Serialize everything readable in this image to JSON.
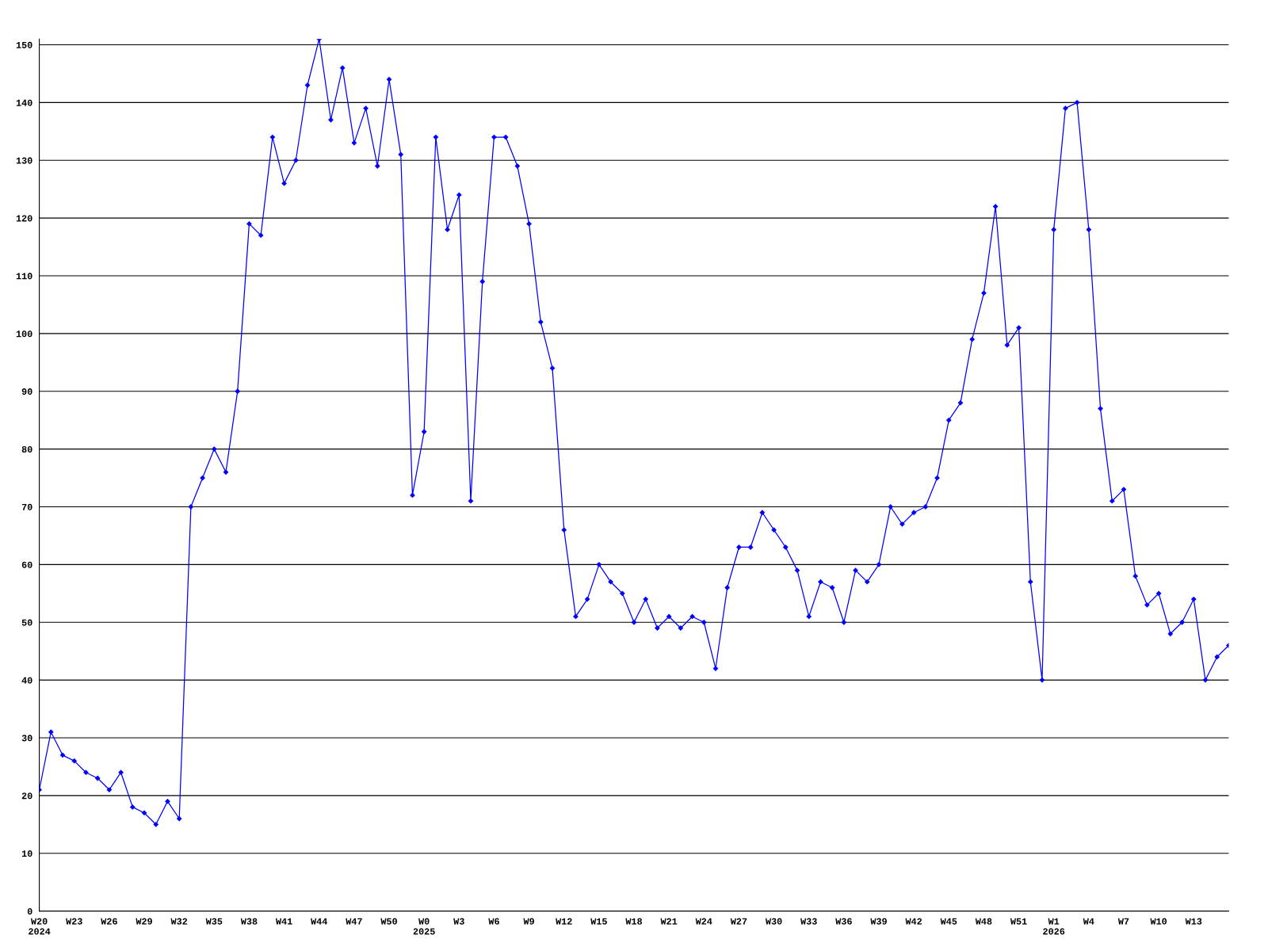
{
  "chart_data": {
    "type": "line",
    "categories": [
      "W20\n2024",
      null,
      null,
      "W23",
      null,
      null,
      "W26",
      null,
      null,
      "W29",
      null,
      null,
      "W32",
      null,
      null,
      "W35",
      null,
      null,
      "W38",
      null,
      null,
      "W41",
      null,
      null,
      "W44",
      null,
      null,
      "W47",
      null,
      null,
      "W50",
      null,
      null,
      "W0\n2025",
      null,
      null,
      "W3",
      null,
      null,
      "W6",
      null,
      null,
      "W9",
      null,
      null,
      "W12",
      null,
      null,
      "W15",
      null,
      null,
      "W18",
      null,
      null,
      "W21",
      null,
      null,
      "W24",
      null,
      null,
      "W27",
      null,
      null,
      "W30",
      null,
      null,
      "W33",
      null,
      null,
      "W36",
      null,
      null,
      "W39",
      null,
      null,
      "W42",
      null,
      null,
      "W45",
      null,
      null,
      "W48",
      null,
      null,
      "W51",
      null,
      null,
      "W1\n2026",
      null,
      null,
      "W4",
      null,
      null,
      "W7",
      null,
      null,
      "W10",
      null,
      null,
      "W13",
      null,
      null,
      null
    ],
    "series": [
      {
        "color": "#0000ff",
        "values": [
          21,
          31,
          27,
          26,
          24,
          23,
          21,
          24,
          18,
          17,
          15,
          19,
          16,
          70,
          75,
          80,
          76,
          90,
          119,
          117,
          134,
          126,
          130,
          143,
          151,
          137,
          146,
          133,
          139,
          129,
          144,
          131,
          72,
          83,
          134,
          118,
          124,
          71,
          109,
          134,
          134,
          129,
          119,
          102,
          94,
          66,
          51,
          54,
          60,
          57,
          55,
          50,
          54,
          49,
          51,
          49,
          51,
          50,
          42,
          56,
          63,
          63,
          69,
          66,
          63,
          59,
          51,
          57,
          56,
          50,
          59,
          57,
          60,
          70,
          67,
          69,
          70,
          75,
          85,
          88,
          99,
          107,
          122,
          98,
          101,
          57,
          40,
          118,
          139,
          140,
          118,
          87,
          71,
          73,
          58,
          53,
          55,
          48,
          50,
          54,
          40,
          44,
          46
        ]
      }
    ],
    "ylim": [
      0,
      151
    ],
    "yticks": [
      0,
      10,
      20,
      30,
      40,
      50,
      60,
      70,
      80,
      90,
      100,
      110,
      120,
      130,
      140,
      150
    ],
    "grid": "y",
    "marker": "diamond",
    "line_style": "solid",
    "legend": false
  }
}
